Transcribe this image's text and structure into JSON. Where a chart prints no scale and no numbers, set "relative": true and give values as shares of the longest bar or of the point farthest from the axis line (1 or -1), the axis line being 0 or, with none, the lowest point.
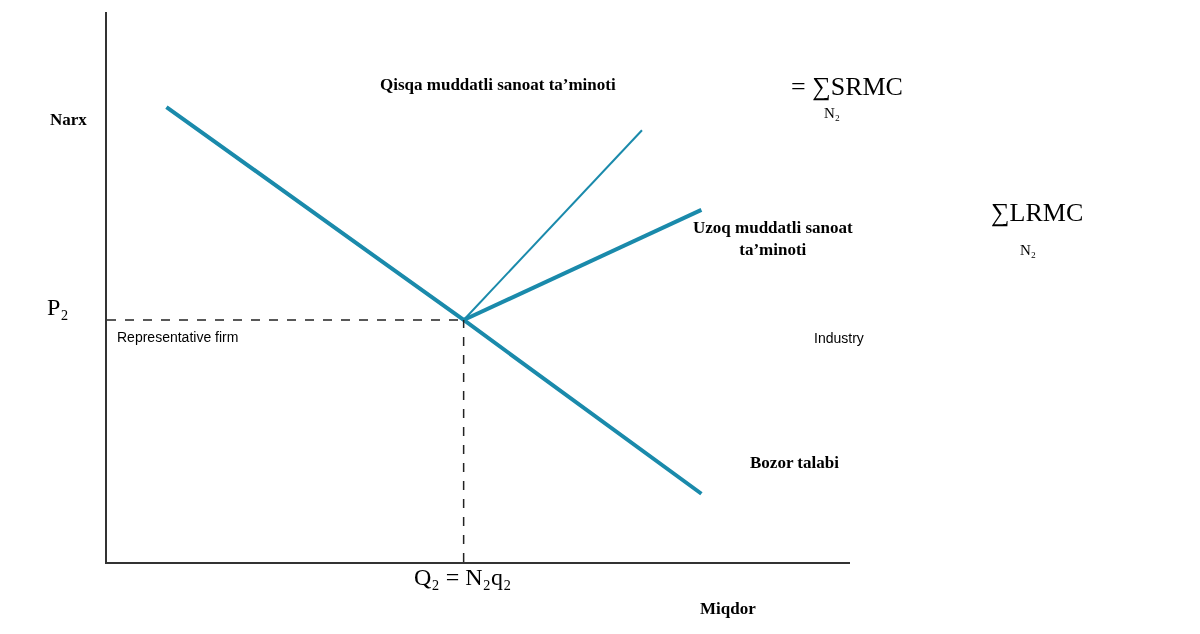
{
  "chart_data": {
    "type": "line",
    "relative": true,
    "ylabel": "Narx",
    "xlabel": "Miqdor",
    "line_style": "solid",
    "marker": "none",
    "categories": [
      null,
      null,
      null,
      null,
      null,
      null,
      null,
      null,
      null,
      null,
      null,
      null,
      null,
      null,
      null,
      null,
      null,
      null,
      null,
      null,
      null,
      null,
      null,
      null,
      null,
      null
    ],
    "series": [
      {
        "color": "#1a8aab",
        "values": [
          null,
          null,
          1,
          null,
          null,
          null,
          null,
          null,
          null,
          null,
          null,
          null,
          0.532,
          null,
          null,
          null,
          null,
          null,
          null,
          null,
          0.15,
          null,
          null,
          null,
          null,
          null
        ]
      },
      {
        "color": "#1a8aab",
        "values": [
          null,
          null,
          null,
          null,
          null,
          null,
          null,
          null,
          null,
          null,
          null,
          null,
          0.532,
          null,
          null,
          null,
          null,
          null,
          0.949,
          null,
          null,
          null,
          null,
          null,
          null,
          null
        ]
      },
      {
        "color": "#1a8aab",
        "values": [
          null,
          null,
          null,
          null,
          null,
          null,
          null,
          null,
          null,
          null,
          null,
          null,
          0.532,
          null,
          null,
          null,
          null,
          null,
          null,
          null,
          0.774,
          null,
          null,
          null,
          null,
          null
        ]
      },
      {
        "color": "#222222",
        "line_style": "dashed",
        "values": [
          0.532,
          null,
          null,
          null,
          null,
          null,
          null,
          null,
          null,
          null,
          null,
          null,
          0.532,
          null,
          null,
          null,
          null,
          null,
          null,
          null,
          null,
          null,
          null,
          null,
          null,
          null
        ]
      }
    ],
    "annotations": [
      "Qisqa muddatli sanoat ta’minoti",
      "= ∑SRMC",
      "N₂",
      "Uzoq muddatli sanoat\nta’minoti",
      "∑LRMC",
      "N₂",
      "P₂",
      "Representative firm",
      "Industry",
      "Bozor talabi",
      "Q₂ = N₂q₂"
    ]
  }
}
